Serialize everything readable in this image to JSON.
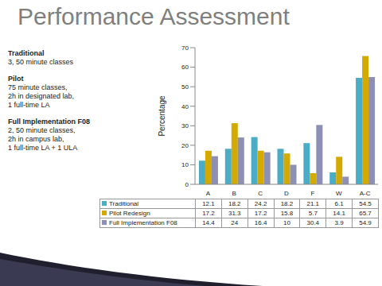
{
  "slide": {
    "title": "Performance Assessment",
    "notes": [
      {
        "heading": "Traditional",
        "lines": [
          "3, 50 minute classes"
        ]
      },
      {
        "heading": "Pilot",
        "lines": [
          "75 minute classes,",
          "2h in designated lab,",
          "1 full-time LA"
        ]
      },
      {
        "heading": "Full Implementation F08",
        "lines": [
          "2, 50 minute classes,",
          "2h in campus lab,",
          "1 full-time LA + 1 ULA"
        ]
      }
    ]
  },
  "chart_data": {
    "type": "bar",
    "y_label": "Percentage",
    "categories": [
      "A",
      "B",
      "C",
      "D",
      "F",
      "W",
      "A-C"
    ],
    "series": [
      {
        "name": "Traditional",
        "color": "#4bacc6",
        "values": [
          12.1,
          18.2,
          24.2,
          18.2,
          21.1,
          6.1,
          54.5
        ]
      },
      {
        "name": "Pilot Redesign",
        "color": "#d4aa00",
        "values": [
          17.2,
          31.3,
          17.2,
          15.8,
          5.7,
          14.1,
          65.7
        ]
      },
      {
        "name": "Full Implementation F08",
        "color": "#8e8fb5",
        "values": [
          14.4,
          24,
          16.4,
          10,
          30.4,
          3.9,
          54.9
        ]
      }
    ],
    "ylim": [
      0,
      70
    ],
    "yticks": [
      0,
      10,
      20,
      30,
      40,
      50,
      60,
      70
    ],
    "grid": false
  }
}
